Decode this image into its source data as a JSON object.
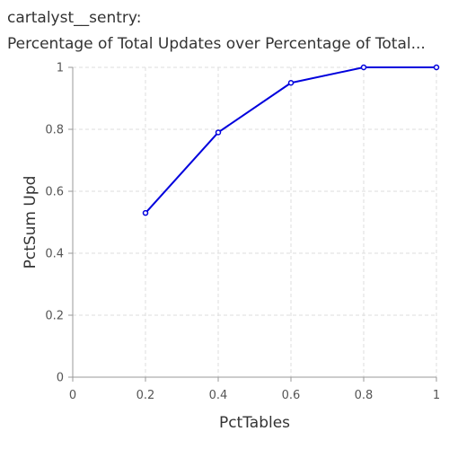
{
  "chart_data": {
    "type": "line",
    "title": "cartalyst__sentry:",
    "subtitle": "Percentage of Total Updates over Percentage of Total...",
    "xlabel": "PctTables",
    "ylabel": "PctSum Upd",
    "xlim": [
      0,
      1
    ],
    "ylim": [
      0,
      1
    ],
    "xticks": [
      "0",
      "0.2",
      "0.4",
      "0.6",
      "0.8",
      "1"
    ],
    "yticks": [
      "0",
      "0.2",
      "0.4",
      "0.6",
      "0.8",
      "1"
    ],
    "grid": true,
    "series": [
      {
        "color": "#0000dd",
        "x": [
          0.2,
          0.4,
          0.6,
          0.8,
          1.0
        ],
        "y": [
          0.53,
          0.79,
          0.95,
          1.0,
          1.0
        ]
      }
    ]
  }
}
